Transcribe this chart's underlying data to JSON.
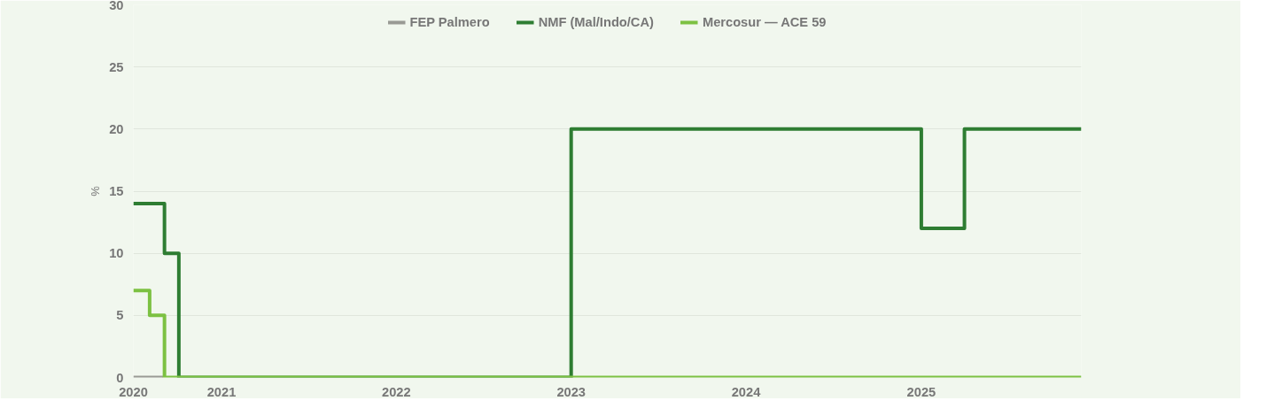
{
  "chart_data": {
    "type": "step",
    "ylabel": "%",
    "legend": "top",
    "grid": "y",
    "marker": "none",
    "line_style": "solid",
    "xlim": [
      "2020-07-01",
      "2025-12-01"
    ],
    "xticks": [
      {
        "value": "2020-07-01",
        "label": "2020"
      },
      {
        "value": "2021-01-01",
        "label": "2021"
      },
      {
        "value": "2022-01-01",
        "label": "2022"
      },
      {
        "value": "2023-01-01",
        "label": "2023"
      },
      {
        "value": "2024-01-01",
        "label": "2024"
      },
      {
        "value": "2025-01-01",
        "label": "2025"
      }
    ],
    "ylim": [
      0,
      30
    ],
    "yticks": [
      0,
      5,
      10,
      15,
      20,
      25,
      30
    ],
    "series": [
      {
        "name": "FEP Palmero",
        "color": "#999a94",
        "x": [
          "2020-07-01",
          "2020-09-01"
        ],
        "values": [
          0,
          0
        ]
      },
      {
        "name": "NMF (Mal/Indo/CA)",
        "color": "#2e7d32",
        "x": [
          "2020-07-01",
          "2020-09-04",
          "2020-10-04",
          "2023-01-01",
          "2025-01-01",
          "2025-04-01",
          "2025-12-01"
        ],
        "values": [
          14,
          10,
          0,
          20,
          12,
          20,
          20
        ]
      },
      {
        "name": "Mercosur — ACE 59",
        "color": "#7cc142",
        "x": [
          "2020-07-01",
          "2020-08-04",
          "2020-09-04",
          "2025-12-01"
        ],
        "values": [
          7,
          5,
          0,
          0
        ]
      }
    ]
  }
}
